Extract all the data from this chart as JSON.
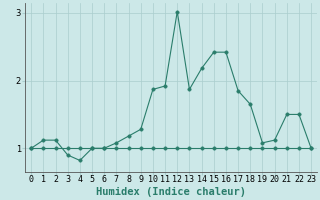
{
  "xlabel": "Humidex (Indice chaleur)",
  "x_values": [
    0,
    1,
    2,
    3,
    4,
    5,
    6,
    7,
    8,
    9,
    10,
    11,
    12,
    13,
    14,
    15,
    16,
    17,
    18,
    19,
    20,
    21,
    22,
    23
  ],
  "y_main": [
    1.0,
    1.12,
    1.12,
    0.9,
    0.82,
    1.0,
    1.0,
    1.08,
    1.18,
    1.28,
    1.87,
    1.92,
    3.02,
    1.87,
    2.18,
    2.42,
    2.42,
    1.85,
    1.65,
    1.08,
    1.12,
    1.5,
    1.5,
    1.0
  ],
  "y_ref": [
    1.0,
    1.0,
    1.0,
    1.0,
    1.0,
    1.0,
    1.0,
    1.0,
    1.0,
    1.0,
    1.0,
    1.0,
    1.0,
    1.0,
    1.0,
    1.0,
    1.0,
    1.0,
    1.0,
    1.0,
    1.0,
    1.0,
    1.0,
    1.0
  ],
  "ylim": [
    0.65,
    3.15
  ],
  "xlim": [
    -0.5,
    23.5
  ],
  "line_color": "#2a7d6b",
  "bg_color": "#cce8e8",
  "grid_color": "#aacece",
  "marker_size": 2.5,
  "linewidth": 0.8,
  "tick_fontsize": 6.0,
  "xlabel_fontsize": 7.5,
  "yticks": [
    1,
    2,
    3
  ],
  "xtick_labels": [
    "0",
    "1",
    "2",
    "3",
    "4",
    "5",
    "6",
    "7",
    "8",
    "9",
    "10",
    "11",
    "12",
    "13",
    "14",
    "15",
    "16",
    "17",
    "18",
    "19",
    "20",
    "21",
    "22",
    "23"
  ]
}
